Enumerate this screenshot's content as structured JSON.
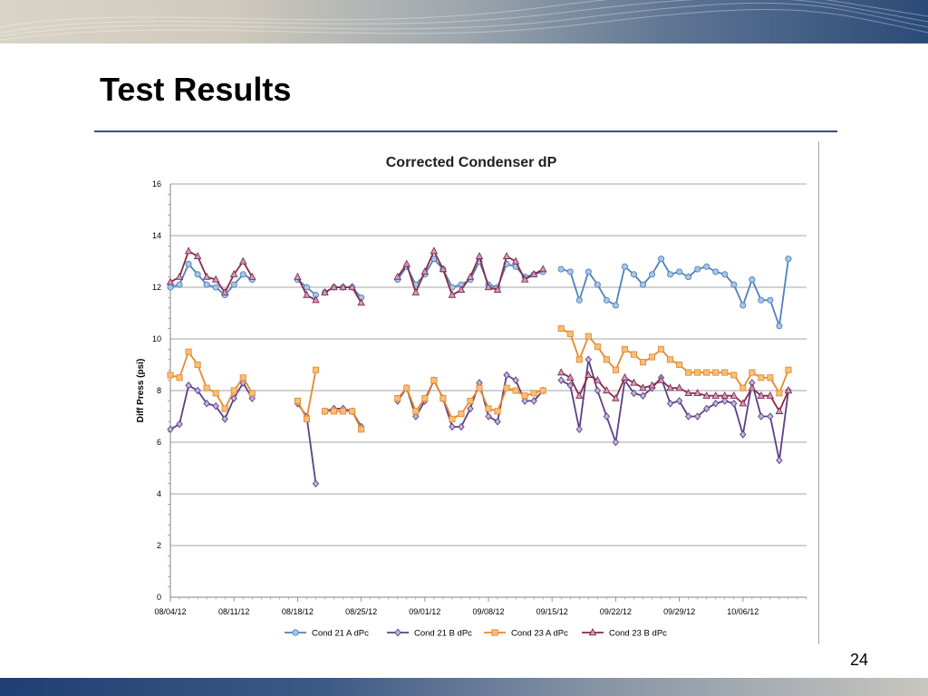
{
  "slide": {
    "title": "Test Results",
    "page_number": "24"
  },
  "colors": {
    "cond21a": "#4f81bd",
    "cond21a_fill": "#a8c6e8",
    "cond21b": "#5c3f85",
    "cond21b_fill": "#c4b5dc",
    "cond23a": "#e8892c",
    "cond23a_fill": "#f7bf7c",
    "cond23b": "#8a2a47",
    "cond23b_fill": "#c4a0c8",
    "grid": "#868686"
  },
  "chart_data": {
    "type": "line",
    "title": "Corrected Condenser  dP",
    "xlabel": "",
    "ylabel": "Diff Press (psi)",
    "ylim": [
      0,
      16
    ],
    "yticks": [
      0,
      2,
      4,
      6,
      8,
      10,
      12,
      14,
      16
    ],
    "xlim": [
      "2012-08-04",
      "2012-10-13"
    ],
    "xticks": [
      "08/04/12",
      "08/11/12",
      "08/18/12",
      "08/25/12",
      "09/01/12",
      "09/08/12",
      "09/15/12",
      "09/22/12",
      "09/29/12",
      "10/06/12"
    ],
    "grid": "horizontal",
    "legend_position": "bottom",
    "segments": [
      {
        "x": [
          "2012-08-04",
          "2012-08-05",
          "2012-08-06",
          "2012-08-07",
          "2012-08-08",
          "2012-08-09",
          "2012-08-10",
          "2012-08-11",
          "2012-08-12",
          "2012-08-13",
          "2012-08-14"
        ]
      },
      {
        "x": [
          "2012-08-18",
          "2012-08-19",
          "2012-08-20"
        ]
      },
      {
        "x": [
          "2012-08-21",
          "2012-08-22",
          "2012-08-23",
          "2012-08-24",
          "2012-08-25"
        ]
      },
      {
        "x": [
          "2012-08-29",
          "2012-08-30",
          "2012-08-31",
          "2012-09-01",
          "2012-09-02",
          "2012-09-03",
          "2012-09-04",
          "2012-09-05",
          "2012-09-06",
          "2012-09-07",
          "2012-09-08",
          "2012-09-09",
          "2012-09-10",
          "2012-09-11",
          "2012-09-12",
          "2012-09-13",
          "2012-09-14",
          "2012-09-15",
          "2012-09-16",
          "2012-09-17",
          "2012-09-18",
          "2012-09-19",
          "2012-09-20",
          "2012-09-21",
          "2012-09-22",
          "2012-09-23",
          "2012-09-24",
          "2012-09-25",
          "2012-09-26",
          "2012-09-27",
          "2012-09-28",
          "2012-09-29",
          "2012-09-30",
          "2012-10-01",
          "2012-10-02",
          "2012-10-03",
          "2012-10-04",
          "2012-10-05",
          "2012-10-06",
          "2012-10-07",
          "2012-10-08",
          "2012-10-09",
          "2012-10-10",
          "2012-10-11",
          "2012-10-12",
          "2012-10-13"
        ]
      }
    ],
    "series": [
      {
        "name": "Cond 21 A dPc",
        "marker": "circle",
        "segments": [
          [
            12.0,
            12.1,
            12.9,
            12.5,
            12.1,
            12.0,
            11.7,
            12.1,
            12.5,
            12.3,
            null
          ],
          [
            12.3,
            12.0,
            11.7
          ],
          [
            11.8,
            12.0,
            12.0,
            12.0,
            11.6
          ],
          [
            12.3,
            12.8,
            12.1,
            12.5,
            13.1,
            12.7,
            12.0,
            12.1,
            12.3,
            13.0,
            12.1,
            12.0,
            12.9,
            12.8,
            12.4,
            12.5,
            12.6,
            null,
            12.7,
            12.6,
            11.5,
            12.6,
            12.1,
            11.5,
            11.3,
            12.8,
            12.5,
            12.1,
            12.5,
            13.1,
            12.5,
            12.6,
            12.4,
            12.7,
            12.8,
            12.6,
            12.5,
            12.1,
            11.3,
            12.3,
            11.5,
            11.5,
            10.5,
            13.1,
            null,
            null
          ]
        ]
      },
      {
        "name": "Cond 21 B dPc",
        "marker": "diamond",
        "segments": [
          [
            6.5,
            6.7,
            8.2,
            8.0,
            7.5,
            7.4,
            6.9,
            7.7,
            8.3,
            7.7,
            null
          ],
          [
            7.5,
            7.0,
            4.4
          ],
          [
            7.2,
            7.3,
            7.3,
            7.2,
            6.6
          ],
          [
            7.6,
            8.1,
            7.0,
            7.6,
            8.4,
            7.7,
            6.6,
            6.6,
            7.3,
            8.3,
            7.0,
            6.8,
            8.6,
            8.4,
            7.6,
            7.6,
            8.0,
            null,
            8.4,
            8.2,
            6.5,
            9.2,
            8.0,
            7.0,
            6.0,
            8.4,
            7.9,
            7.8,
            8.1,
            8.5,
            7.5,
            7.6,
            7.0,
            7.0,
            7.3,
            7.5,
            7.6,
            7.5,
            6.3,
            8.3,
            7.0,
            7.0,
            5.3,
            8.0,
            null,
            null
          ]
        ]
      },
      {
        "name": "Cond 23 A dPc",
        "marker": "square",
        "segments": [
          [
            8.6,
            8.5,
            9.5,
            9.0,
            8.1,
            7.9,
            7.3,
            8.0,
            8.5,
            7.9,
            null
          ],
          [
            7.6,
            6.9,
            8.8
          ],
          [
            7.2,
            7.2,
            7.2,
            7.2,
            6.5
          ],
          [
            7.7,
            8.1,
            7.2,
            7.7,
            8.4,
            7.7,
            6.9,
            7.1,
            7.6,
            8.1,
            7.3,
            7.2,
            8.1,
            8.0,
            7.8,
            7.9,
            8.0,
            null,
            10.4,
            10.2,
            9.2,
            10.1,
            9.7,
            9.2,
            8.8,
            9.6,
            9.4,
            9.1,
            9.3,
            9.6,
            9.2,
            9.0,
            8.7,
            8.7,
            8.7,
            8.7,
            8.7,
            8.6,
            8.1,
            8.7,
            8.5,
            8.5,
            7.9,
            8.8,
            null,
            null
          ]
        ]
      },
      {
        "name": "Cond 23 B dPc",
        "marker": "triangle",
        "segments": [
          [
            12.2,
            12.4,
            13.4,
            13.2,
            12.4,
            12.3,
            11.8,
            12.5,
            13.0,
            12.4,
            null
          ],
          [
            12.4,
            11.7,
            11.5
          ],
          [
            11.8,
            12.0,
            12.0,
            12.0,
            11.4
          ],
          [
            12.4,
            12.9,
            11.8,
            12.6,
            13.4,
            12.7,
            11.7,
            11.9,
            12.4,
            13.2,
            12.0,
            11.9,
            13.2,
            13.0,
            12.3,
            12.5,
            12.7,
            null,
            8.7,
            8.5,
            7.8,
            8.6,
            8.4,
            8.0,
            7.7,
            8.5,
            8.3,
            8.1,
            8.2,
            8.4,
            8.1,
            8.1,
            7.9,
            7.9,
            7.8,
            7.8,
            7.8,
            7.8,
            7.5,
            8.1,
            7.8,
            7.8,
            7.2,
            8.0,
            null,
            null
          ]
        ]
      }
    ]
  }
}
